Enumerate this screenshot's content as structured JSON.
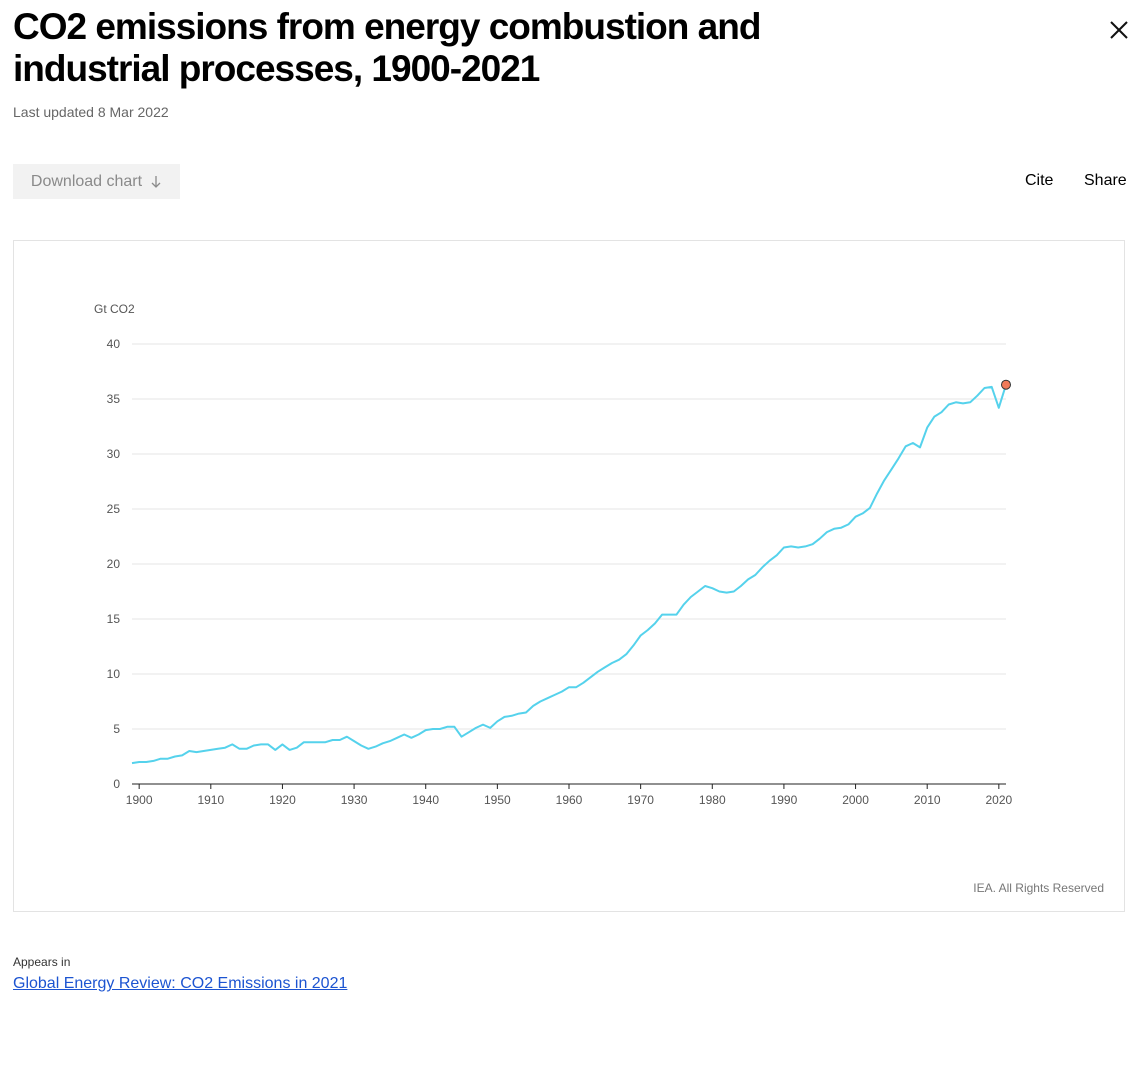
{
  "page": {
    "title": "CO2 emissions from energy combustion and industrial processes, 1900-2021",
    "last_updated": "Last updated 8 Mar 2022",
    "download_label": "Download chart",
    "cite_label": "Cite",
    "share_label": "Share",
    "close_icon": "close-icon",
    "download_icon": "arrow-down-icon",
    "appears_in_label": "Appears in",
    "report_link": "Global Energy Review: CO2 Emissions in 2021"
  },
  "colors": {
    "line": "#55d2ec",
    "highlight_fill": "#f07a5a",
    "highlight_stroke": "#333333",
    "link": "#1c54d1"
  },
  "chart_data": {
    "type": "line",
    "ylabel": "Gt CO2",
    "copyright": "IEA. All Rights Reserved",
    "ylim": [
      0,
      40
    ],
    "yticks": [
      0,
      5,
      10,
      15,
      20,
      25,
      30,
      35,
      40
    ],
    "xlim": [
      1899,
      2021
    ],
    "xticks": [
      1900,
      1910,
      1920,
      1930,
      1940,
      1950,
      1960,
      1970,
      1980,
      1990,
      2000,
      2010,
      2020
    ],
    "grid": true,
    "highlight": {
      "x": 2021,
      "y": 36.3
    },
    "series": [
      {
        "name": "CO2 emissions",
        "x": [
          1899,
          1900,
          1901,
          1902,
          1903,
          1904,
          1905,
          1906,
          1907,
          1908,
          1909,
          1910,
          1911,
          1912,
          1913,
          1914,
          1915,
          1916,
          1917,
          1918,
          1919,
          1920,
          1921,
          1922,
          1923,
          1924,
          1925,
          1926,
          1927,
          1928,
          1929,
          1930,
          1931,
          1932,
          1933,
          1934,
          1935,
          1936,
          1937,
          1938,
          1939,
          1940,
          1941,
          1942,
          1943,
          1944,
          1945,
          1946,
          1947,
          1948,
          1949,
          1950,
          1951,
          1952,
          1953,
          1954,
          1955,
          1956,
          1957,
          1958,
          1959,
          1960,
          1961,
          1962,
          1963,
          1964,
          1965,
          1966,
          1967,
          1968,
          1969,
          1970,
          1971,
          1972,
          1973,
          1974,
          1975,
          1976,
          1977,
          1978,
          1979,
          1980,
          1981,
          1982,
          1983,
          1984,
          1985,
          1986,
          1987,
          1988,
          1989,
          1990,
          1991,
          1992,
          1993,
          1994,
          1995,
          1996,
          1997,
          1998,
          1999,
          2000,
          2001,
          2002,
          2003,
          2004,
          2005,
          2006,
          2007,
          2008,
          2009,
          2010,
          2011,
          2012,
          2013,
          2014,
          2015,
          2016,
          2017,
          2018,
          2019,
          2020,
          2021
        ],
        "y": [
          1.9,
          2.0,
          2.0,
          2.1,
          2.3,
          2.3,
          2.5,
          2.6,
          3.0,
          2.9,
          3.0,
          3.1,
          3.2,
          3.3,
          3.6,
          3.2,
          3.2,
          3.5,
          3.6,
          3.6,
          3.1,
          3.6,
          3.1,
          3.3,
          3.8,
          3.8,
          3.8,
          3.8,
          4.0,
          4.0,
          4.3,
          3.9,
          3.5,
          3.2,
          3.4,
          3.7,
          3.9,
          4.2,
          4.5,
          4.2,
          4.5,
          4.9,
          5.0,
          5.0,
          5.2,
          5.2,
          4.3,
          4.7,
          5.1,
          5.4,
          5.1,
          5.7,
          6.1,
          6.2,
          6.4,
          6.5,
          7.1,
          7.5,
          7.8,
          8.1,
          8.4,
          8.8,
          8.8,
          9.2,
          9.7,
          10.2,
          10.6,
          11.0,
          11.3,
          11.8,
          12.6,
          13.5,
          14.0,
          14.6,
          15.4,
          15.4,
          15.4,
          16.3,
          17.0,
          17.5,
          18.0,
          17.8,
          17.5,
          17.4,
          17.5,
          18.0,
          18.6,
          19.0,
          19.7,
          20.3,
          20.8,
          21.5,
          21.6,
          21.5,
          21.6,
          21.8,
          22.3,
          22.9,
          23.2,
          23.3,
          23.6,
          24.3,
          24.6,
          25.1,
          26.4,
          27.6,
          28.6,
          29.6,
          30.7,
          31.0,
          30.6,
          32.4,
          33.4,
          33.8,
          34.5,
          34.7,
          34.6,
          34.7,
          35.3,
          36.0,
          36.1,
          34.2,
          36.3
        ]
      }
    ]
  }
}
